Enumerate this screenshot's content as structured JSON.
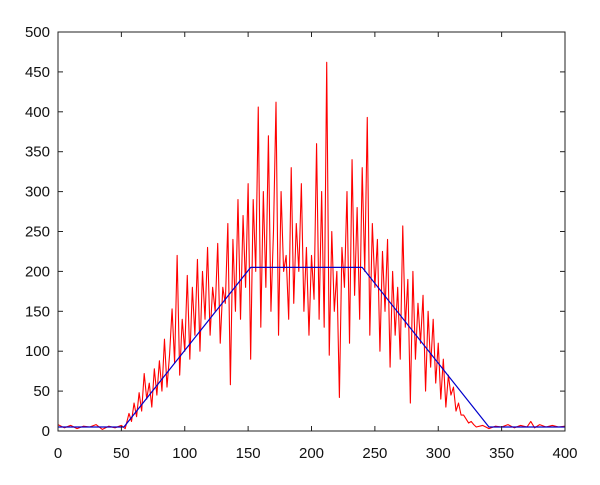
{
  "chart_data": {
    "type": "line",
    "title": "",
    "xlabel": "",
    "ylabel": "",
    "xlim": [
      0,
      400
    ],
    "ylim": [
      0,
      500
    ],
    "grid": false,
    "x_ticks": [
      0,
      50,
      100,
      150,
      200,
      250,
      300,
      350,
      400
    ],
    "y_ticks": [
      0,
      50,
      100,
      150,
      200,
      250,
      300,
      350,
      400,
      450,
      500
    ],
    "series": [
      {
        "color": "#ff0000",
        "style": "noisy-line",
        "points": [
          [
            0,
            8
          ],
          [
            5,
            4
          ],
          [
            10,
            7
          ],
          [
            15,
            3
          ],
          [
            20,
            6
          ],
          [
            25,
            5
          ],
          [
            30,
            8
          ],
          [
            35,
            2
          ],
          [
            40,
            6
          ],
          [
            45,
            4
          ],
          [
            50,
            7
          ],
          [
            53,
            3
          ],
          [
            56,
            22
          ],
          [
            58,
            12
          ],
          [
            60,
            35
          ],
          [
            62,
            18
          ],
          [
            64,
            48
          ],
          [
            66,
            25
          ],
          [
            68,
            72
          ],
          [
            70,
            40
          ],
          [
            72,
            60
          ],
          [
            74,
            30
          ],
          [
            76,
            78
          ],
          [
            78,
            45
          ],
          [
            80,
            88
          ],
          [
            82,
            50
          ],
          [
            84,
            115
          ],
          [
            86,
            55
          ],
          [
            88,
            95
          ],
          [
            90,
            153
          ],
          [
            92,
            85
          ],
          [
            94,
            220
          ],
          [
            96,
            70
          ],
          [
            98,
            140
          ],
          [
            100,
            100
          ],
          [
            102,
            195
          ],
          [
            104,
            90
          ],
          [
            106,
            180
          ],
          [
            108,
            120
          ],
          [
            110,
            215
          ],
          [
            112,
            100
          ],
          [
            114,
            200
          ],
          [
            116,
            140
          ],
          [
            118,
            230
          ],
          [
            120,
            120
          ],
          [
            122,
            180
          ],
          [
            124,
            150
          ],
          [
            126,
            235
          ],
          [
            128,
            110
          ],
          [
            130,
            180
          ],
          [
            132,
            160
          ],
          [
            134,
            260
          ],
          [
            136,
            58
          ],
          [
            138,
            240
          ],
          [
            140,
            150
          ],
          [
            142,
            290
          ],
          [
            144,
            140
          ],
          [
            146,
            270
          ],
          [
            148,
            180
          ],
          [
            150,
            310
          ],
          [
            152,
            90
          ],
          [
            154,
            290
          ],
          [
            156,
            200
          ],
          [
            158,
            406
          ],
          [
            160,
            130
          ],
          [
            162,
            300
          ],
          [
            164,
            180
          ],
          [
            166,
            370
          ],
          [
            168,
            150
          ],
          [
            170,
            250
          ],
          [
            172,
            412
          ],
          [
            174,
            120
          ],
          [
            176,
            300
          ],
          [
            178,
            200
          ],
          [
            180,
            220
          ],
          [
            182,
            140
          ],
          [
            184,
            330
          ],
          [
            186,
            160
          ],
          [
            188,
            260
          ],
          [
            190,
            200
          ],
          [
            192,
            310
          ],
          [
            194,
            150
          ],
          [
            196,
            230
          ],
          [
            198,
            120
          ],
          [
            200,
            220
          ],
          [
            202,
            165
          ],
          [
            204,
            360
          ],
          [
            206,
            140
          ],
          [
            208,
            300
          ],
          [
            210,
            130
          ],
          [
            212,
            462
          ],
          [
            214,
            95
          ],
          [
            216,
            250
          ],
          [
            218,
            150
          ],
          [
            220,
            200
          ],
          [
            222,
            42
          ],
          [
            224,
            230
          ],
          [
            226,
            180
          ],
          [
            228,
            300
          ],
          [
            230,
            110
          ],
          [
            232,
            340
          ],
          [
            234,
            170
          ],
          [
            236,
            280
          ],
          [
            238,
            140
          ],
          [
            240,
            330
          ],
          [
            242,
            200
          ],
          [
            244,
            393
          ],
          [
            246,
            120
          ],
          [
            248,
            260
          ],
          [
            250,
            180
          ],
          [
            252,
            240
          ],
          [
            254,
            100
          ],
          [
            256,
            225
          ],
          [
            258,
            150
          ],
          [
            260,
            240
          ],
          [
            262,
            80
          ],
          [
            264,
            200
          ],
          [
            266,
            120
          ],
          [
            268,
            180
          ],
          [
            270,
            90
          ],
          [
            272,
            257
          ],
          [
            274,
            130
          ],
          [
            276,
            190
          ],
          [
            278,
            35
          ],
          [
            280,
            200
          ],
          [
            282,
            90
          ],
          [
            284,
            160
          ],
          [
            286,
            110
          ],
          [
            288,
            170
          ],
          [
            290,
            50
          ],
          [
            292,
            150
          ],
          [
            294,
            80
          ],
          [
            296,
            140
          ],
          [
            298,
            60
          ],
          [
            300,
            110
          ],
          [
            302,
            40
          ],
          [
            304,
            90
          ],
          [
            306,
            30
          ],
          [
            308,
            70
          ],
          [
            310,
            45
          ],
          [
            312,
            55
          ],
          [
            314,
            25
          ],
          [
            316,
            35
          ],
          [
            318,
            20
          ],
          [
            320,
            20
          ],
          [
            322,
            15
          ],
          [
            324,
            10
          ],
          [
            326,
            12
          ],
          [
            328,
            8
          ],
          [
            330,
            5
          ],
          [
            335,
            7
          ],
          [
            340,
            3
          ],
          [
            345,
            6
          ],
          [
            350,
            5
          ],
          [
            355,
            8
          ],
          [
            360,
            4
          ],
          [
            365,
            7
          ],
          [
            370,
            5
          ],
          [
            373,
            12
          ],
          [
            376,
            4
          ],
          [
            380,
            8
          ],
          [
            385,
            5
          ],
          [
            390,
            7
          ],
          [
            395,
            5
          ],
          [
            400,
            6
          ]
        ]
      },
      {
        "color": "#0000cc",
        "style": "trapezoid",
        "points": [
          [
            0,
            5
          ],
          [
            52,
            5
          ],
          [
            152,
            205
          ],
          [
            240,
            205
          ],
          [
            340,
            5
          ],
          [
            400,
            5
          ]
        ]
      }
    ]
  }
}
